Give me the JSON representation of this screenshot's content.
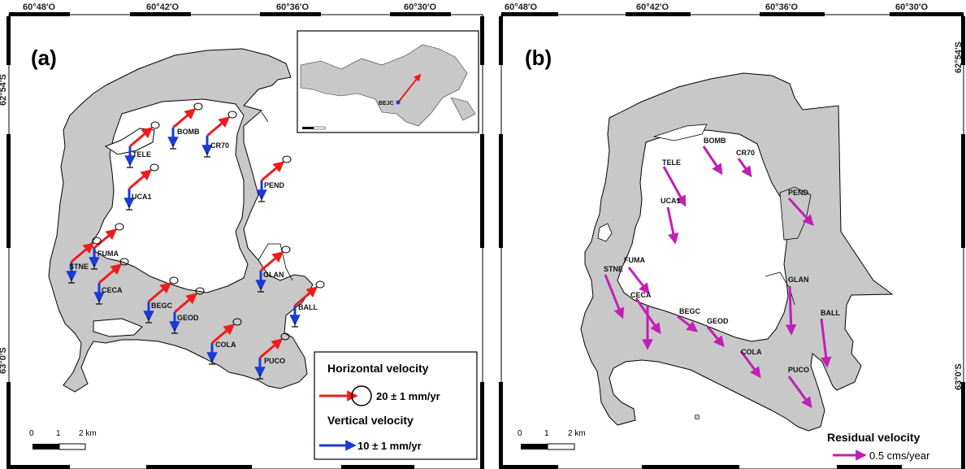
{
  "panel_a": {
    "label": "(a)",
    "lon_ticks": [
      "60°48'O",
      "60°42'O",
      "60°36'O",
      "60°30'O"
    ],
    "lat_top": "62°54'S",
    "lat_bottom": "63°0'S",
    "stations": [
      "TELE",
      "BOMB",
      "CR70",
      "PEND",
      "UCA1",
      "FUMA",
      "STNE",
      "CECA",
      "GLAN",
      "BALL",
      "BEGC",
      "GEOD",
      "COLA",
      "PUCO"
    ],
    "inset_station": "BEJC",
    "legend": {
      "horizontal_title": "Horizontal velocity",
      "horizontal_value": "20 ± 1 mm/yr",
      "vertical_title": "Vertical velocity",
      "vertical_value": "10 ± 1 mm/yr"
    },
    "scale": {
      "zero": "0",
      "one": "1",
      "two": "2 km"
    },
    "colors": {
      "horizontal": "#ee1c1c",
      "vertical": "#1c3ad6"
    }
  },
  "panel_b": {
    "label": "(b)",
    "lon_ticks": [
      "60°48'O",
      "60°42'O",
      "60°36'O",
      "60°30'O"
    ],
    "lat_top": "62°54'S",
    "lat_bottom": "63°0'S",
    "stations": [
      "BOMB",
      "CR70",
      "TELE",
      "UCA1",
      "PEND",
      "FUMA",
      "STNE",
      "CECA",
      "GLAN",
      "BEGC",
      "GEOD",
      "BALL",
      "COLA",
      "PUCO"
    ],
    "legend": {
      "title": "Residual velocity",
      "value": "0.5 cms/year"
    },
    "scale": {
      "zero": "0",
      "one": "1",
      "two": "2 km"
    },
    "colors": {
      "residual": "#c21fb5"
    }
  }
}
